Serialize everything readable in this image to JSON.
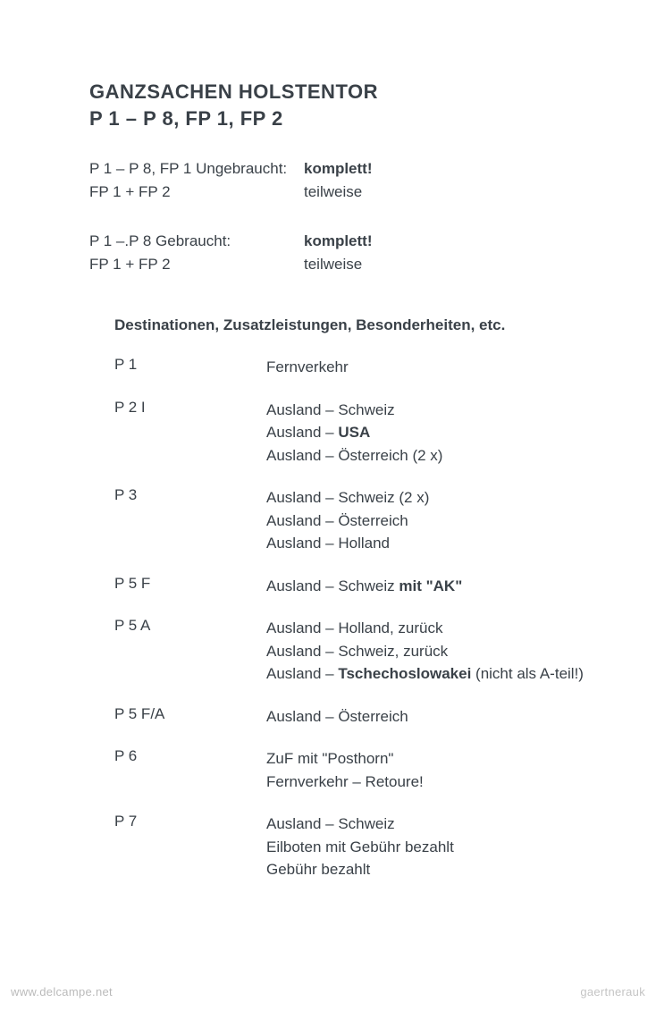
{
  "header": {
    "line1": "GANZSACHEN HOLSTENTOR",
    "line2": "P 1 – P 8, FP 1, FP 2"
  },
  "summary_blocks": [
    {
      "rows": [
        {
          "left": "P 1 – P 8, FP 1 Ungebraucht:",
          "right": "komplett!",
          "bold": true
        },
        {
          "left": "FP 1 + FP 2",
          "right": "teilweise",
          "bold": false
        }
      ]
    },
    {
      "rows": [
        {
          "left": "P 1 –.P 8 Gebraucht:",
          "right": "komplett!",
          "bold": true
        },
        {
          "left": "FP 1 + FP 2",
          "right": "teilweise",
          "bold": false
        }
      ]
    }
  ],
  "section_title": "Destinationen, Zusatzleistungen, Besonderheiten, etc.",
  "entries": [
    {
      "code": "P 1",
      "lines": [
        {
          "segments": [
            {
              "text": "Fernverkehr",
              "bold": false
            }
          ]
        }
      ]
    },
    {
      "code": "P 2 I",
      "lines": [
        {
          "segments": [
            {
              "text": "Ausland – Schweiz",
              "bold": false
            }
          ]
        },
        {
          "segments": [
            {
              "text": "Ausland – ",
              "bold": false
            },
            {
              "text": "USA",
              "bold": true
            }
          ]
        },
        {
          "segments": [
            {
              "text": "Ausland – Österreich (2 x)",
              "bold": false
            }
          ]
        }
      ]
    },
    {
      "code": "P 3",
      "lines": [
        {
          "segments": [
            {
              "text": "Ausland – Schweiz (2 x)",
              "bold": false
            }
          ]
        },
        {
          "segments": [
            {
              "text": "Ausland – Österreich",
              "bold": false
            }
          ]
        },
        {
          "segments": [
            {
              "text": "Ausland – Holland",
              "bold": false
            }
          ]
        }
      ]
    },
    {
      "code": "P 5 F",
      "lines": [
        {
          "segments": [
            {
              "text": "Ausland – Schweiz ",
              "bold": false
            },
            {
              "text": "mit \"AK\"",
              "bold": true
            }
          ]
        }
      ]
    },
    {
      "code": "P 5 A",
      "lines": [
        {
          "segments": [
            {
              "text": "Ausland – Holland, zurück",
              "bold": false
            }
          ]
        },
        {
          "segments": [
            {
              "text": "Ausland – Schweiz, zurück",
              "bold": false
            }
          ]
        },
        {
          "segments": [
            {
              "text": "Ausland – ",
              "bold": false
            },
            {
              "text": "Tschechoslowakei",
              "bold": true
            },
            {
              "text": " (nicht als A-teil!)",
              "bold": false
            }
          ]
        }
      ]
    },
    {
      "code": "P 5 F/A",
      "lines": [
        {
          "segments": [
            {
              "text": "Ausland – Österreich",
              "bold": false
            }
          ]
        }
      ]
    },
    {
      "code": "P 6",
      "lines": [
        {
          "segments": [
            {
              "text": "ZuF mit \"Posthorn\"",
              "bold": false
            }
          ]
        },
        {
          "segments": [
            {
              "text": "Fernverkehr – Retoure!",
              "bold": false
            }
          ]
        }
      ]
    },
    {
      "code": "P 7",
      "lines": [
        {
          "segments": [
            {
              "text": "Ausland – Schweiz",
              "bold": false
            }
          ]
        },
        {
          "segments": [
            {
              "text": "Eilboten mit Gebühr bezahlt",
              "bold": false
            }
          ]
        },
        {
          "segments": [
            {
              "text": "Gebühr bezahlt",
              "bold": false
            }
          ]
        }
      ]
    }
  ],
  "watermarks": {
    "left": "www.delcampe.net",
    "right": "gaertnerauk"
  },
  "colors": {
    "text": "#3a4148",
    "background": "#ffffff",
    "watermark": "rgba(0,0,0,0.28)"
  }
}
